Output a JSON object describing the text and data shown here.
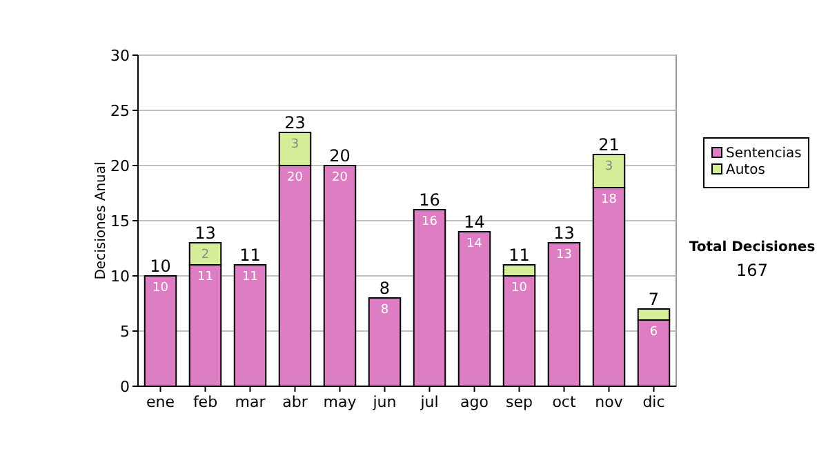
{
  "chart_data": {
    "type": "bar",
    "stacked": true,
    "ylabel": "Decisiones Anual",
    "categories": [
      "ene",
      "feb",
      "mar",
      "abr",
      "may",
      "jun",
      "jul",
      "ago",
      "sep",
      "oct",
      "nov",
      "dic"
    ],
    "series": [
      {
        "name": "Sentencias",
        "color": "#dd7ec4",
        "values": [
          10,
          11,
          11,
          20,
          20,
          8,
          16,
          14,
          10,
          13,
          18,
          6
        ],
        "value_labels": [
          "10",
          "11",
          "11",
          "20",
          "20",
          "8",
          "16",
          "14",
          "10",
          "13",
          "18",
          "6"
        ]
      },
      {
        "name": "Autos",
        "color": "#d4ec98",
        "values": [
          0,
          2,
          0,
          3,
          0,
          0,
          0,
          0,
          1,
          0,
          3,
          1
        ],
        "value_labels": [
          null,
          "2",
          null,
          "3",
          null,
          null,
          null,
          null,
          null,
          null,
          "3",
          null
        ]
      }
    ],
    "totals": [
      "10",
      "13",
      "11",
      "23",
      "20",
      "8",
      "16",
      "14",
      "11",
      "13",
      "21",
      "7"
    ],
    "ylim": [
      0,
      30
    ],
    "yticks": [
      0,
      5,
      10,
      15,
      20,
      25,
      30
    ],
    "grid": "y",
    "legend": "right",
    "annotations": [
      "Total Decisiones",
      "167"
    ]
  }
}
